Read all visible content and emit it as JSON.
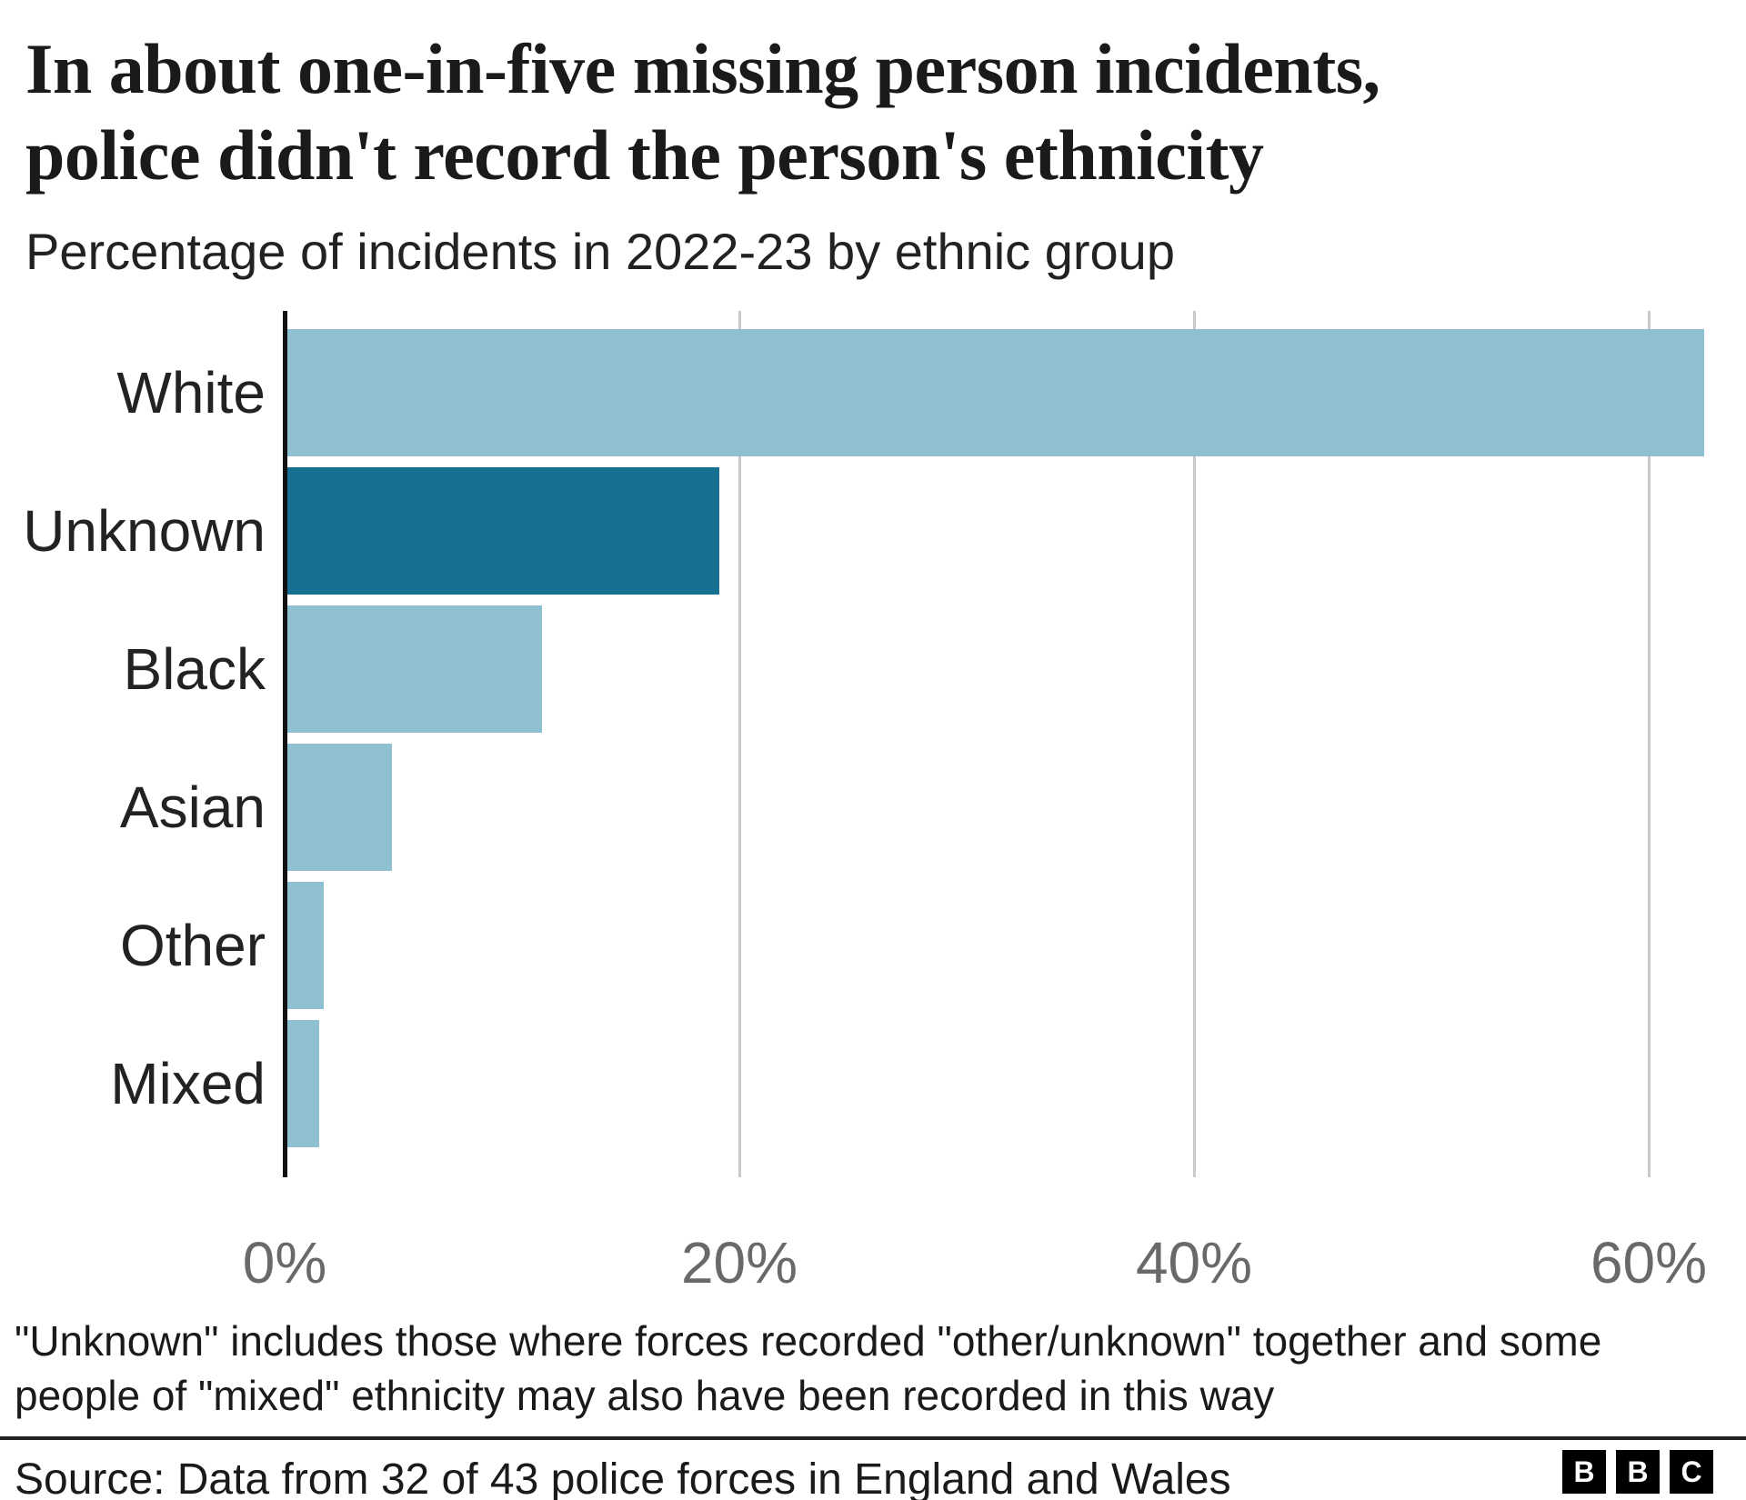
{
  "header": {
    "title_line1": "In about one-in-five missing person incidents,",
    "title_line2": "police didn't record the person's ethnicity",
    "subtitle": "Percentage of incidents in 2022-23 by ethnic group"
  },
  "chart_data": {
    "type": "bar",
    "orientation": "horizontal",
    "title": "In about one-in-five missing person incidents, police didn't record the person's ethnicity",
    "subtitle": "Percentage of incidents in 2022-23 by ethnic group",
    "categories": [
      "White",
      "Unknown",
      "Black",
      "Asian",
      "Other",
      "Mixed"
    ],
    "values": [
      62.3,
      19.0,
      11.2,
      4.6,
      1.6,
      1.4
    ],
    "unit": "%",
    "highlight_category": "Unknown",
    "bar_color": "#8FC0D2",
    "highlight_color": "#176F91",
    "axis_color": "#111111",
    "gridline_color": "#C9C9C9",
    "tick_label_color": "#696969",
    "x_ticks": [
      "0%",
      "20%",
      "40%",
      "60%"
    ],
    "x_tick_values": [
      0,
      20,
      40,
      60
    ],
    "xlim": [
      0,
      62.6
    ],
    "grid": "vertical-gridlines-on",
    "legend": "none"
  },
  "footnote": "\"Unknown\" includes those where forces recorded \"other/unknown\" together and some people of \"mixed\" ethnicity may also have been recorded in this way",
  "source": "Source: Data from 32 of 43 police forces in England and Wales",
  "logo": {
    "letters": [
      "B",
      "B",
      "C"
    ]
  }
}
